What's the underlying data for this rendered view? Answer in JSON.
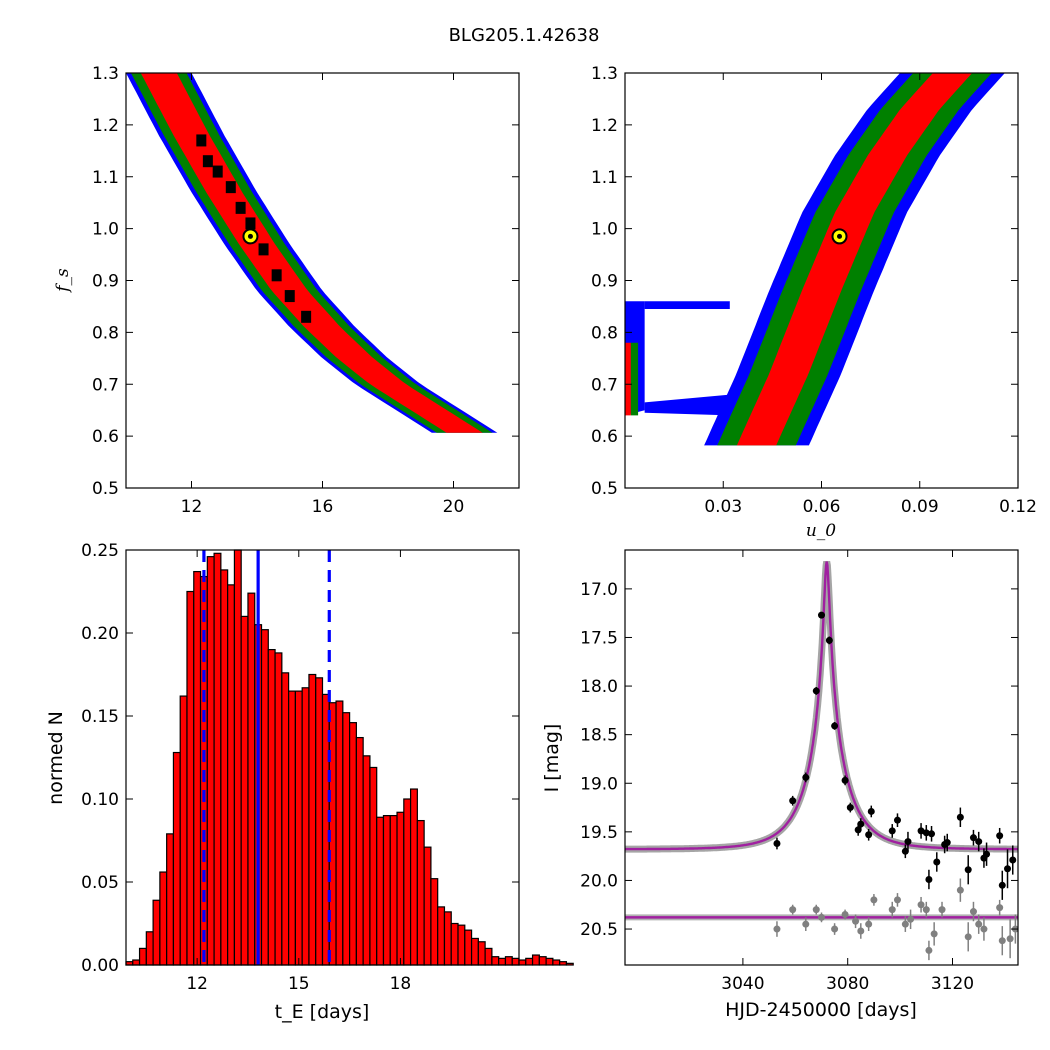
{
  "figure": {
    "title": "BLG205.1.42638"
  },
  "colors": {
    "sigma1": "#ff0000",
    "sigma2": "#008000",
    "sigma3": "#0000ff",
    "samples": "#000000",
    "best": "#ffff00",
    "hist": "#ff0000",
    "model": "#a020a0",
    "model_band": "#7f7f7f",
    "data_main": "#000000",
    "data_secondary": "#808080",
    "vline": "#0000ff"
  },
  "chart_data": [
    {
      "id": "fs_vs_tE",
      "type": "heatmap",
      "title": "",
      "xlabel": "",
      "ylabel": "f_s",
      "xlim": [
        10,
        22
      ],
      "ylim": [
        0.5,
        1.3
      ],
      "xticks": [
        "12",
        "16",
        "20"
      ],
      "xtick_values": [
        12,
        16,
        20
      ],
      "yticks": [
        "0.5",
        "0.6",
        "0.7",
        "0.8",
        "0.9",
        "1.0",
        "1.1",
        "1.2",
        "1.3"
      ],
      "ytick_values": [
        0.5,
        0.6,
        0.7,
        0.8,
        0.9,
        1.0,
        1.1,
        1.2,
        1.3
      ],
      "ridge": [
        [
          11.0,
          1.3
        ],
        [
          12.0,
          1.18
        ],
        [
          13.0,
          1.07
        ],
        [
          14.0,
          0.97
        ],
        [
          15.0,
          0.88
        ],
        [
          16.0,
          0.81
        ],
        [
          17.0,
          0.75
        ],
        [
          18.0,
          0.7
        ],
        [
          19.0,
          0.66
        ],
        [
          20.5,
          0.6
        ]
      ],
      "levels": [
        {
          "name": "1-sigma",
          "color": "#ff0000",
          "half_width_x": 0.55
        },
        {
          "name": "2-sigma",
          "color": "#008000",
          "half_width_x": 0.85
        },
        {
          "name": "3-sigma",
          "color": "#0000ff",
          "half_width_x": 1.0
        }
      ],
      "samples": [
        [
          12.3,
          1.17
        ],
        [
          12.5,
          1.13
        ],
        [
          12.8,
          1.11
        ],
        [
          13.2,
          1.08
        ],
        [
          13.5,
          1.04
        ],
        [
          13.8,
          1.01
        ],
        [
          14.2,
          0.96
        ],
        [
          14.6,
          0.91
        ],
        [
          15.0,
          0.87
        ],
        [
          15.5,
          0.83
        ]
      ],
      "best_fit": {
        "x": 13.8,
        "y": 0.985
      }
    },
    {
      "id": "fs_vs_u0",
      "type": "heatmap",
      "title": "",
      "xlabel": "u_0",
      "ylabel": "",
      "xlim": [
        0.0,
        0.12
      ],
      "ylim": [
        0.5,
        1.3
      ],
      "xticks": [
        "0.03",
        "0.06",
        "0.09",
        "0.12"
      ],
      "xtick_values": [
        0.03,
        0.06,
        0.09,
        0.12
      ],
      "yticks": [
        "0.5",
        "0.6",
        "0.7",
        "0.8",
        "0.9",
        "1.0",
        "1.1",
        "1.2",
        "1.3"
      ],
      "ytick_values": [
        0.5,
        0.6,
        0.7,
        0.8,
        0.9,
        1.0,
        1.1,
        1.2,
        1.3
      ],
      "ridge": [
        [
          0.04,
          0.58
        ],
        [
          0.05,
          0.72
        ],
        [
          0.06,
          0.88
        ],
        [
          0.07,
          1.03
        ],
        [
          0.08,
          1.14
        ],
        [
          0.09,
          1.23
        ],
        [
          0.1,
          1.3
        ]
      ],
      "levels": [
        {
          "name": "1-sigma",
          "color": "#ff0000",
          "half_width_x": 0.006
        },
        {
          "name": "2-sigma",
          "color": "#008000",
          "half_width_x": 0.012
        },
        {
          "name": "3-sigma",
          "color": "#0000ff",
          "half_width_x": 0.016
        }
      ],
      "side_branch": {
        "x_range": [
          0.0,
          0.03
        ],
        "y_range": [
          0.64,
          0.86
        ]
      },
      "best_fit": {
        "x": 0.0655,
        "y": 0.985
      }
    },
    {
      "id": "tE_histogram",
      "type": "bar",
      "title": "",
      "xlabel": "t_E [days]",
      "ylabel": "normed N",
      "xlim": [
        9.9,
        21.5
      ],
      "ylim": [
        0.0,
        0.25
      ],
      "xticks": [
        "12",
        "15",
        "18"
      ],
      "xtick_values": [
        12,
        15,
        18
      ],
      "yticks": [
        "0.00",
        "0.05",
        "0.10",
        "0.15",
        "0.20",
        "0.25"
      ],
      "ytick_values": [
        0.0,
        0.05,
        0.1,
        0.15,
        0.2,
        0.25
      ],
      "bin_start": 9.9,
      "bin_width": 0.2,
      "values": [
        0.002,
        0.003,
        0.01,
        0.02,
        0.039,
        0.056,
        0.079,
        0.128,
        0.162,
        0.225,
        0.237,
        0.234,
        0.246,
        0.248,
        0.238,
        0.229,
        0.25,
        0.21,
        0.224,
        0.205,
        0.202,
        0.19,
        0.188,
        0.176,
        0.165,
        0.165,
        0.167,
        0.175,
        0.173,
        0.163,
        0.158,
        0.159,
        0.152,
        0.146,
        0.137,
        0.126,
        0.119,
        0.089,
        0.09,
        0.09,
        0.092,
        0.1,
        0.106,
        0.087,
        0.071,
        0.052,
        0.035,
        0.032,
        0.025,
        0.024,
        0.021,
        0.016,
        0.014,
        0.01,
        0.005,
        0.004,
        0.005,
        0.004,
        0.003,
        0.004,
        0.006,
        0.005,
        0.004,
        0.003,
        0.002,
        0.001,
        0.0,
        0.0
      ],
      "vlines": [
        {
          "x": 12.2,
          "style": "dashed"
        },
        {
          "x": 13.8,
          "style": "solid"
        },
        {
          "x": 15.9,
          "style": "dashed"
        }
      ]
    },
    {
      "id": "lightcurve",
      "type": "scatter",
      "title": "",
      "xlabel": "HJD-2450000 [days]",
      "ylabel": "I [mag]",
      "xlim": [
        2995,
        3145
      ],
      "ylim": [
        20.87,
        16.6
      ],
      "xticks": [
        "3040",
        "3080",
        "3120"
      ],
      "xtick_values": [
        3040,
        3080,
        3120
      ],
      "yticks": [
        "17.0",
        "17.5",
        "18.0",
        "18.5",
        "19.0",
        "19.5",
        "20.0",
        "20.5"
      ],
      "ytick_values": [
        17.0,
        17.5,
        18.0,
        18.5,
        19.0,
        19.5,
        20.0,
        20.5
      ],
      "model": {
        "t0": 3072.0,
        "tE": 13.8,
        "u0": 0.0655,
        "base_mag": 19.68,
        "secondary_mag": 20.38
      },
      "series": [
        {
          "role": "primary",
          "points": [
            [
              3053,
              19.62,
              0.06
            ],
            [
              3059,
              19.18,
              0.05
            ],
            [
              3064,
              18.94,
              0.05
            ],
            [
              3068,
              18.05,
              0.04
            ],
            [
              3070,
              17.27,
              0.03
            ],
            [
              3073,
              17.53,
              0.04
            ],
            [
              3075,
              18.41,
              0.04
            ],
            [
              3079,
              18.97,
              0.05
            ],
            [
              3081,
              19.25,
              0.05
            ],
            [
              3084,
              19.48,
              0.06
            ],
            [
              3085,
              19.42,
              0.06
            ],
            [
              3088,
              19.53,
              0.06
            ],
            [
              3089,
              19.29,
              0.06
            ],
            [
              3097,
              19.49,
              0.07
            ],
            [
              3099,
              19.38,
              0.07
            ],
            [
              3102,
              19.7,
              0.07
            ],
            [
              3103,
              19.6,
              0.1
            ],
            [
              3108,
              19.49,
              0.08
            ],
            [
              3110,
              19.51,
              0.08
            ],
            [
              3111,
              19.99,
              0.1
            ],
            [
              3112,
              19.52,
              0.08
            ],
            [
              3114,
              19.81,
              0.1
            ],
            [
              3117,
              19.63,
              0.09
            ],
            [
              3118,
              19.61,
              0.09
            ],
            [
              3123,
              19.35,
              0.1
            ],
            [
              3126,
              19.89,
              0.15
            ],
            [
              3128,
              19.56,
              0.08
            ],
            [
              3130,
              19.6,
              0.1
            ],
            [
              3132,
              19.77,
              0.1
            ],
            [
              3133,
              19.73,
              0.12
            ],
            [
              3138,
              19.54,
              0.08
            ],
            [
              3139,
              20.05,
              0.15
            ],
            [
              3141,
              19.88,
              0.2
            ],
            [
              3143,
              19.79,
              0.15
            ]
          ]
        },
        {
          "role": "secondary",
          "points": [
            [
              3053,
              20.5,
              0.08
            ],
            [
              3059,
              20.3,
              0.05
            ],
            [
              3064,
              20.45,
              0.07
            ],
            [
              3068,
              20.3,
              0.05
            ],
            [
              3070,
              20.38,
              0.05
            ],
            [
              3075,
              20.5,
              0.06
            ],
            [
              3079,
              20.35,
              0.05
            ],
            [
              3083,
              20.42,
              0.07
            ],
            [
              3085,
              20.52,
              0.08
            ],
            [
              3088,
              20.45,
              0.07
            ],
            [
              3090,
              20.2,
              0.06
            ],
            [
              3097,
              20.3,
              0.08
            ],
            [
              3099,
              20.2,
              0.07
            ],
            [
              3102,
              20.45,
              0.08
            ],
            [
              3104,
              20.4,
              0.1
            ],
            [
              3108,
              20.25,
              0.08
            ],
            [
              3110,
              20.3,
              0.08
            ],
            [
              3111,
              20.72,
              0.1
            ],
            [
              3113,
              20.55,
              0.12
            ],
            [
              3116,
              20.3,
              0.08
            ],
            [
              3123,
              20.1,
              0.12
            ],
            [
              3126,
              20.58,
              0.15
            ],
            [
              3128,
              20.32,
              0.1
            ],
            [
              3130,
              20.45,
              0.1
            ],
            [
              3132,
              20.5,
              0.12
            ],
            [
              3138,
              20.28,
              0.08
            ],
            [
              3139,
              20.62,
              0.15
            ],
            [
              3142,
              20.6,
              0.2
            ],
            [
              3144,
              20.5,
              0.15
            ]
          ]
        }
      ]
    }
  ]
}
